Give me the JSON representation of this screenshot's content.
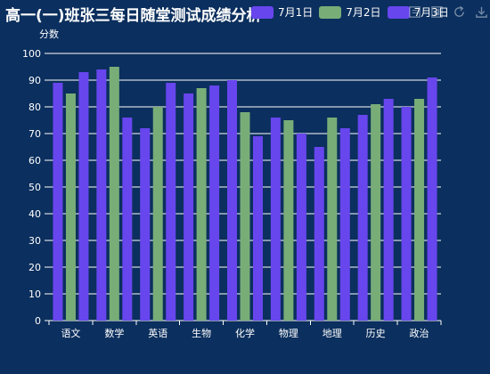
{
  "chart_data": {
    "type": "bar",
    "title": "高一(一)班张三每日随堂测试成绩分析",
    "ylabel": "分数",
    "xlabel": "",
    "ylim": [
      0,
      100
    ],
    "yticks": [
      0,
      10,
      20,
      30,
      40,
      50,
      60,
      70,
      80,
      90,
      100
    ],
    "categories": [
      "语文",
      "数学",
      "英语",
      "生物",
      "化学",
      "物理",
      "地理",
      "历史",
      "政治"
    ],
    "series": [
      {
        "name": "7月1日",
        "color": "#6746ee",
        "values": [
          89,
          94,
          72,
          85,
          90,
          76,
          65,
          77,
          80
        ]
      },
      {
        "name": "7月2日",
        "color": "#79ad78",
        "values": [
          85,
          95,
          80,
          87,
          78,
          75,
          76,
          81,
          83
        ]
      },
      {
        "name": "7月3日",
        "color": "#6746ee",
        "values": [
          93,
          76,
          89,
          88,
          69,
          70,
          72,
          83,
          91
        ]
      }
    ],
    "grid": true,
    "legend_position": "top-right"
  },
  "toolbox": {
    "icons": [
      "data-view-icon",
      "magic-type-icon",
      "restore-icon",
      "save-as-image-icon"
    ]
  }
}
